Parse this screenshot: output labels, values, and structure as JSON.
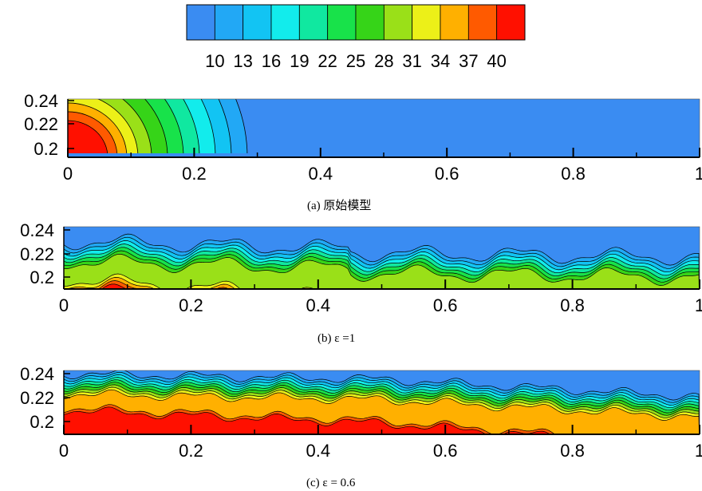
{
  "chart_data": {
    "type": "heatmap",
    "colorbar": {
      "levels": [
        "10",
        "13",
        "16",
        "19",
        "22",
        "25",
        "28",
        "31",
        "34",
        "37",
        "40"
      ],
      "colors": [
        "#3a8cf2",
        "#22a8f5",
        "#12c4f3",
        "#12ecec",
        "#10e8a0",
        "#18e24a",
        "#36d418",
        "#9ae018",
        "#ecf018",
        "#ffb000",
        "#ff5a00",
        "#ff1000"
      ]
    },
    "panels": [
      {
        "caption": "(a)  原始模型",
        "xlim": [
          0,
          1
        ],
        "ylim": [
          0.19,
          0.24
        ],
        "xticks": [
          "0",
          "0.2",
          "0.4",
          "0.6",
          "0.8",
          "1"
        ],
        "yticks": [
          "0.24",
          "0.22",
          "0.2"
        ],
        "description": "bands near x=0 boundary, max 40 at corner, decaying to 10 by x≈0.3"
      },
      {
        "caption": "(b)  ε =1",
        "xlim": [
          0,
          1
        ],
        "ylim": [
          0.19,
          0.24
        ],
        "xticks": [
          "0",
          "0.2",
          "0.4",
          "0.6",
          "0.8",
          "1"
        ],
        "yticks": [
          "0.24",
          "0.22",
          "0.2"
        ],
        "description": "wavy layer, hot region near bottom left up to x≈0.45"
      },
      {
        "caption": "(c)  ε = 0.6",
        "xlim": [
          0,
          1
        ],
        "ylim": [
          0.19,
          0.24
        ],
        "xticks": [
          "0",
          "0.2",
          "0.4",
          "0.6",
          "0.8",
          "1"
        ],
        "yticks": [
          "0.24",
          "0.22",
          "0.2"
        ],
        "description": "thicker hot layer across the full length"
      }
    ]
  }
}
